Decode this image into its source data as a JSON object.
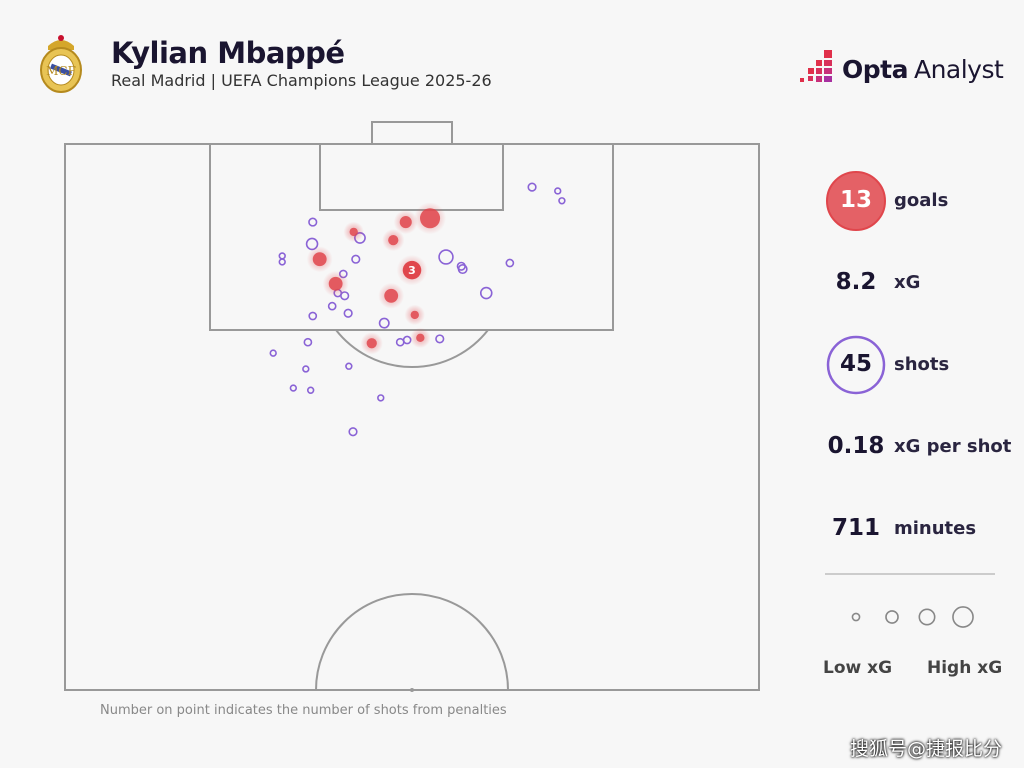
{
  "header": {
    "player": "Kylian Mbappé",
    "subtitle": "Real Madrid | UEFA Champions League 2025-26",
    "crest_icon": "real-madrid-crest",
    "brand_bold": "Opta",
    "brand_light": "Analyst"
  },
  "stats": [
    {
      "value": "13",
      "label": "goals"
    },
    {
      "value": "8.2",
      "label": "xG"
    },
    {
      "value": "45",
      "label": "shots"
    },
    {
      "value": "0.18",
      "label": "xG per shot"
    },
    {
      "value": "711",
      "label": "minutes"
    }
  ],
  "legend": {
    "low": "Low xG",
    "high": "High xG"
  },
  "note": "Number on point indicates the number of shots from penalties",
  "watermark": "搜狐号@捷报比分",
  "colors": {
    "goal": "#e0464c",
    "miss": "#8a63d6",
    "background": "#f7f7f7",
    "lines": "#999999"
  },
  "chart_data": {
    "type": "scatter",
    "title": "Kylian Mbappé shot map",
    "coordinate_system": "x = % of pitch width from left touchline, y = % of half-pitch length from goal line",
    "xlim": [
      0,
      100
    ],
    "ylim": [
      0,
      100
    ],
    "goals": [
      {
        "x": 52.6,
        "y": 13.6,
        "xg": 0.8
      },
      {
        "x": 49.1,
        "y": 14.3,
        "xg": 0.2
      },
      {
        "x": 41.6,
        "y": 16.1,
        "xg": 0.06
      },
      {
        "x": 47.3,
        "y": 17.6,
        "xg": 0.12
      },
      {
        "x": 36.7,
        "y": 21.1,
        "xg": 0.3
      },
      {
        "x": 50.0,
        "y": 23.1,
        "xg": 0.65,
        "penalties": "3"
      },
      {
        "x": 39.0,
        "y": 25.6,
        "xg": 0.3
      },
      {
        "x": 47.0,
        "y": 27.8,
        "xg": 0.3
      },
      {
        "x": 50.4,
        "y": 31.3,
        "xg": 0.06
      },
      {
        "x": 51.2,
        "y": 35.5,
        "xg": 0.06
      },
      {
        "x": 44.2,
        "y": 36.5,
        "xg": 0.12
      }
    ],
    "misses": [
      {
        "x": 67.3,
        "y": 7.9,
        "xg": 0.04
      },
      {
        "x": 71.0,
        "y": 8.6,
        "xg": 0.01
      },
      {
        "x": 71.6,
        "y": 10.4,
        "xg": 0.01
      },
      {
        "x": 35.7,
        "y": 14.3,
        "xg": 0.04
      },
      {
        "x": 42.5,
        "y": 17.2,
        "xg": 0.12
      },
      {
        "x": 35.6,
        "y": 18.3,
        "xg": 0.15
      },
      {
        "x": 31.3,
        "y": 20.5,
        "xg": 0.01
      },
      {
        "x": 31.3,
        "y": 21.6,
        "xg": 0.01
      },
      {
        "x": 41.9,
        "y": 21.1,
        "xg": 0.04
      },
      {
        "x": 54.9,
        "y": 20.7,
        "xg": 0.3
      },
      {
        "x": 57.1,
        "y": 22.4,
        "xg": 0.04
      },
      {
        "x": 57.3,
        "y": 22.9,
        "xg": 0.06
      },
      {
        "x": 64.1,
        "y": 21.8,
        "xg": 0.03
      },
      {
        "x": 40.1,
        "y": 23.8,
        "xg": 0.03
      },
      {
        "x": 39.3,
        "y": 27.3,
        "xg": 0.03
      },
      {
        "x": 40.3,
        "y": 27.8,
        "xg": 0.04
      },
      {
        "x": 38.5,
        "y": 29.7,
        "xg": 0.03
      },
      {
        "x": 60.7,
        "y": 27.3,
        "xg": 0.15
      },
      {
        "x": 40.8,
        "y": 31.0,
        "xg": 0.04
      },
      {
        "x": 35.7,
        "y": 31.5,
        "xg": 0.03
      },
      {
        "x": 46.0,
        "y": 32.8,
        "xg": 0.09
      },
      {
        "x": 35.0,
        "y": 36.3,
        "xg": 0.03
      },
      {
        "x": 48.3,
        "y": 36.3,
        "xg": 0.03
      },
      {
        "x": 49.3,
        "y": 35.9,
        "xg": 0.03
      },
      {
        "x": 54.0,
        "y": 35.7,
        "xg": 0.04
      },
      {
        "x": 30.0,
        "y": 38.3,
        "xg": 0.01
      },
      {
        "x": 34.7,
        "y": 41.2,
        "xg": 0.01
      },
      {
        "x": 40.9,
        "y": 40.7,
        "xg": 0.01
      },
      {
        "x": 32.9,
        "y": 44.7,
        "xg": 0.01
      },
      {
        "x": 35.4,
        "y": 45.1,
        "xg": 0.01
      },
      {
        "x": 45.5,
        "y": 46.5,
        "xg": 0.01
      },
      {
        "x": 41.5,
        "y": 52.7,
        "xg": 0.04
      }
    ],
    "legend_xg_scale": [
      0.03,
      0.2,
      0.4,
      0.8
    ]
  }
}
